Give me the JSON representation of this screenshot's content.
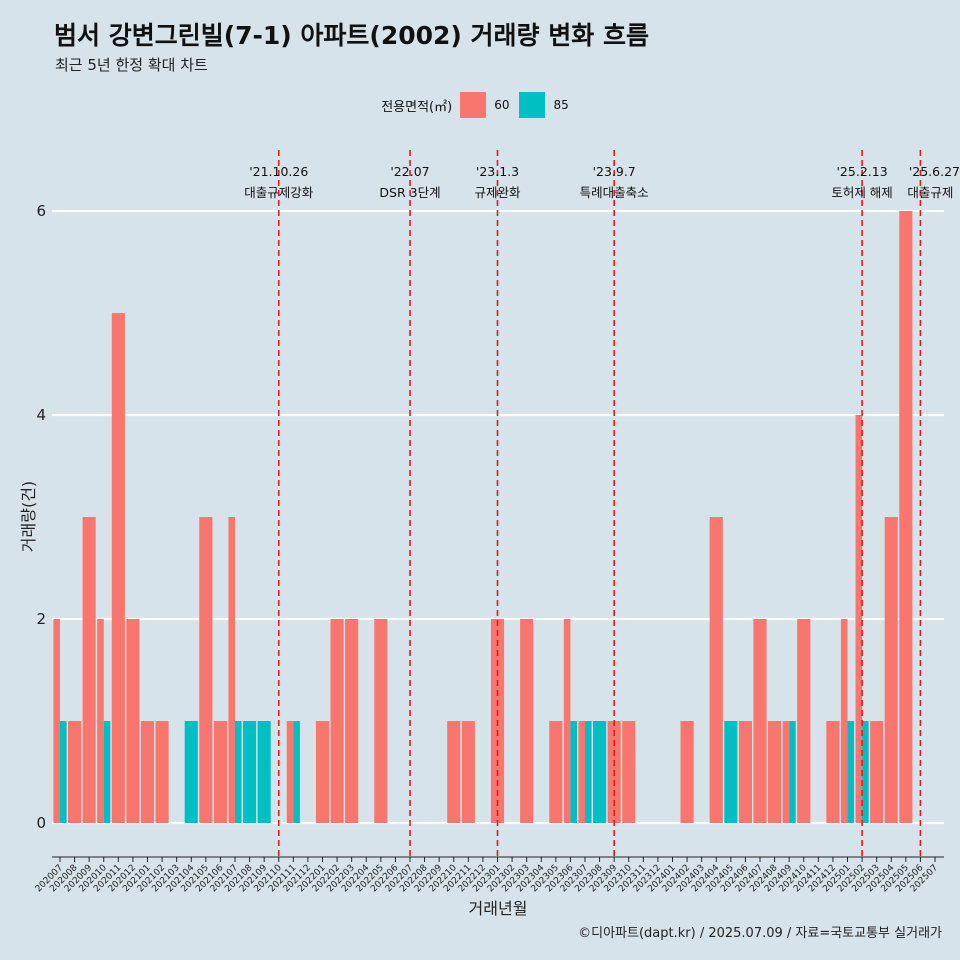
{
  "title": "범서 강변그린빌(7-1) 아파트(2002) 거래량 변화 흐름",
  "subtitle": "최근 5년 한정 확대 차트",
  "caption": "©디아파트(dapt.kr) / 2025.07.09 / 자료=국토교통부 실거래가",
  "legend": {
    "title": "전용면적(㎡)",
    "items": [
      {
        "label": "60",
        "color": "#f8766d"
      },
      {
        "label": "85",
        "color": "#00bfc4"
      }
    ]
  },
  "chart_data": {
    "type": "bar",
    "xlabel": "거래년월",
    "ylabel": "거래량(건)",
    "ylim": [
      0,
      6.3
    ],
    "yticks": [
      0,
      2,
      4,
      6
    ],
    "grid": true,
    "legend_position": "top",
    "categories": [
      "202007",
      "202008",
      "202009",
      "202010",
      "202011",
      "202012",
      "202101",
      "202102",
      "202103",
      "202104",
      "202105",
      "202106",
      "202107",
      "202108",
      "202109",
      "202110",
      "202111",
      "202112",
      "202201",
      "202202",
      "202203",
      "202204",
      "202205",
      "202206",
      "202207",
      "202208",
      "202209",
      "202210",
      "202211",
      "202212",
      "202301",
      "202302",
      "202303",
      "202304",
      "202305",
      "202306",
      "202307",
      "202308",
      "202309",
      "202310",
      "202311",
      "202312",
      "202401",
      "202402",
      "202403",
      "202404",
      "202405",
      "202406",
      "202407",
      "202408",
      "202409",
      "202410",
      "202411",
      "202412",
      "202501",
      "202502",
      "202503",
      "202504",
      "202505",
      "202506",
      "202507"
    ],
    "series": [
      {
        "name": "60",
        "color": "#f8766d",
        "values": [
          2,
          1,
          3,
          2,
          5,
          2,
          1,
          1,
          0,
          0,
          3,
          1,
          3,
          0,
          0,
          0,
          1,
          0,
          1,
          2,
          2,
          0,
          2,
          0,
          0,
          0,
          0,
          1,
          1,
          0,
          2,
          0,
          2,
          0,
          1,
          2,
          1,
          0,
          1,
          1,
          0,
          0,
          0,
          1,
          0,
          3,
          0,
          1,
          2,
          1,
          1,
          2,
          0,
          1,
          2,
          4,
          1,
          3,
          6,
          0,
          0
        ]
      },
      {
        "name": "85",
        "color": "#00bfc4",
        "values": [
          1,
          0,
          0,
          1,
          0,
          0,
          0,
          0,
          0,
          1,
          0,
          0,
          1,
          1,
          1,
          0,
          1,
          0,
          0,
          0,
          0,
          0,
          0,
          0,
          0,
          0,
          0,
          0,
          0,
          0,
          0,
          0,
          0,
          0,
          0,
          1,
          1,
          1,
          0,
          0,
          0,
          0,
          0,
          0,
          0,
          0,
          1,
          0,
          0,
          0,
          1,
          0,
          0,
          0,
          1,
          1,
          0,
          0,
          0,
          0,
          0
        ]
      }
    ],
    "annotations": [
      {
        "x": "202110",
        "date": "'21.10.26",
        "label": "대출규제강화"
      },
      {
        "x": "202207",
        "date": "'22.07",
        "label": "DSR 3단계"
      },
      {
        "x": "202301",
        "date": "'23.1.3",
        "label": "규제완화"
      },
      {
        "x": "202309",
        "date": "'23.9.7",
        "label": "특례대출축소"
      },
      {
        "x": "202502",
        "date": "'25.2.13",
        "label": "토허제 해제"
      },
      {
        "x": "202506",
        "date": "'25.6.27",
        "label": "대출규제"
      }
    ]
  }
}
